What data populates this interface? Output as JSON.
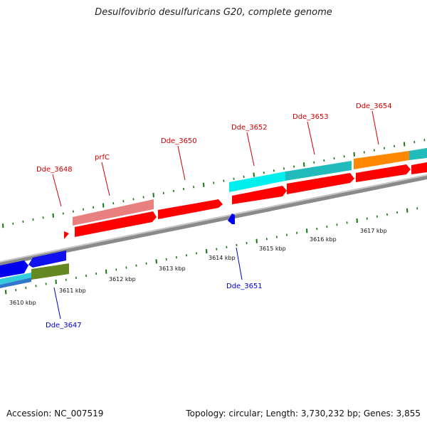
{
  "title": "Desulfovibrio desulfuricans G20, complete genome",
  "footer": {
    "accession": "Accession: NC_007519",
    "summary": "Topology: circular; Length: 3,730,232 bp; Genes: 3,855"
  },
  "scale_labels": [
    "3610 kbp",
    "3611 kbp",
    "3612 kbp",
    "3613 kbp",
    "3614 kbp",
    "3615 kbp",
    "3616 kbp",
    "3617 kbp"
  ],
  "gene_labels": {
    "forward": [
      "Dde_3648",
      "prfC",
      "Dde_3650",
      "Dde_3652",
      "Dde_3653",
      "Dde_3654"
    ],
    "reverse": [
      "Dde_3647",
      "Dde_3651"
    ]
  },
  "colors": {
    "forward_label": "#cc0000",
    "reverse_label": "#0000cc",
    "cds_forward": "#ff0000",
    "cds_reverse": "#0000ee",
    "tick": "#117711",
    "backbone": "#888888"
  }
}
